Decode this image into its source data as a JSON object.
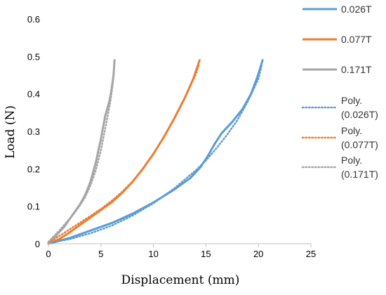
{
  "chart_data": {
    "type": "line",
    "title": "",
    "xlabel": "Displacement (mm)",
    "ylabel": "Load (N)",
    "xlim": [
      0,
      25
    ],
    "ylim": [
      0,
      0.6
    ],
    "x_ticks": [
      "0",
      "5",
      "10",
      "15",
      "20",
      "25"
    ],
    "y_ticks": [
      "0",
      "0.1",
      "0.2",
      "0.3",
      "0.4",
      "0.5",
      "0.6"
    ],
    "grid": false,
    "legend_position": "right",
    "series": [
      {
        "name": "0.026T",
        "color": "#5B9BD5",
        "style": "solid",
        "points": [
          [
            0,
            0
          ],
          [
            2,
            0.015
          ],
          [
            4,
            0.035
          ],
          [
            6,
            0.055
          ],
          [
            8,
            0.08
          ],
          [
            10,
            0.11
          ],
          [
            12,
            0.145
          ],
          [
            13.5,
            0.175
          ],
          [
            14.5,
            0.205
          ],
          [
            15.2,
            0.235
          ],
          [
            15.8,
            0.265
          ],
          [
            16.5,
            0.295
          ],
          [
            17.5,
            0.325
          ],
          [
            18.5,
            0.36
          ],
          [
            19.3,
            0.4
          ],
          [
            19.9,
            0.445
          ],
          [
            20.4,
            0.49
          ]
        ]
      },
      {
        "name": "0.077T",
        "color": "#ED7D31",
        "style": "solid",
        "points": [
          [
            0,
            0
          ],
          [
            1,
            0.012
          ],
          [
            2,
            0.03
          ],
          [
            3,
            0.05
          ],
          [
            4,
            0.07
          ],
          [
            5,
            0.09
          ],
          [
            6,
            0.11
          ],
          [
            7,
            0.135
          ],
          [
            8,
            0.165
          ],
          [
            9,
            0.2
          ],
          [
            10,
            0.24
          ],
          [
            11,
            0.285
          ],
          [
            12,
            0.335
          ],
          [
            13,
            0.39
          ],
          [
            13.8,
            0.44
          ],
          [
            14.4,
            0.49
          ]
        ]
      },
      {
        "name": "0.171T",
        "color": "#A5A5A5",
        "style": "solid",
        "points": [
          [
            0,
            0
          ],
          [
            0.5,
            0.015
          ],
          [
            1,
            0.03
          ],
          [
            1.5,
            0.045
          ],
          [
            2,
            0.065
          ],
          [
            2.5,
            0.085
          ],
          [
            3,
            0.105
          ],
          [
            3.5,
            0.13
          ],
          [
            4,
            0.165
          ],
          [
            4.5,
            0.215
          ],
          [
            5,
            0.28
          ],
          [
            5.4,
            0.34
          ],
          [
            5.8,
            0.38
          ],
          [
            6,
            0.41
          ],
          [
            6.2,
            0.45
          ],
          [
            6.3,
            0.49
          ]
        ]
      },
      {
        "name": "Poly. (0.026T)",
        "color": "#5B9BD5",
        "style": "dotted",
        "points": [
          [
            0,
            0.002
          ],
          [
            2,
            0.012
          ],
          [
            4,
            0.028
          ],
          [
            6,
            0.048
          ],
          [
            8,
            0.075
          ],
          [
            10,
            0.108
          ],
          [
            12,
            0.148
          ],
          [
            14,
            0.195
          ],
          [
            15,
            0.222
          ],
          [
            16,
            0.255
          ],
          [
            17,
            0.29
          ],
          [
            18,
            0.33
          ],
          [
            19,
            0.38
          ],
          [
            20,
            0.44
          ],
          [
            20.3,
            0.475
          ]
        ]
      },
      {
        "name": "Poly. (0.077T)",
        "color": "#ED7D31",
        "style": "dotted",
        "points": [
          [
            0,
            0.003
          ],
          [
            1,
            0.02
          ],
          [
            2,
            0.038
          ],
          [
            3,
            0.056
          ],
          [
            4,
            0.074
          ],
          [
            5,
            0.093
          ],
          [
            6,
            0.114
          ],
          [
            7,
            0.138
          ],
          [
            8,
            0.166
          ],
          [
            9,
            0.2
          ],
          [
            10,
            0.24
          ],
          [
            11,
            0.285
          ],
          [
            12,
            0.335
          ],
          [
            13,
            0.39
          ],
          [
            14,
            0.45
          ],
          [
            14.3,
            0.475
          ]
        ]
      },
      {
        "name": "Poly. (0.171T)",
        "color": "#A5A5A5",
        "style": "dotted",
        "points": [
          [
            0,
            0.005
          ],
          [
            0.5,
            0.02
          ],
          [
            1,
            0.034
          ],
          [
            1.5,
            0.05
          ],
          [
            2,
            0.066
          ],
          [
            2.5,
            0.083
          ],
          [
            3,
            0.102
          ],
          [
            3.5,
            0.125
          ],
          [
            4,
            0.155
          ],
          [
            4.5,
            0.195
          ],
          [
            5,
            0.25
          ],
          [
            5.5,
            0.32
          ],
          [
            5.9,
            0.38
          ],
          [
            6.1,
            0.42
          ],
          [
            6.2,
            0.45
          ]
        ]
      }
    ]
  }
}
